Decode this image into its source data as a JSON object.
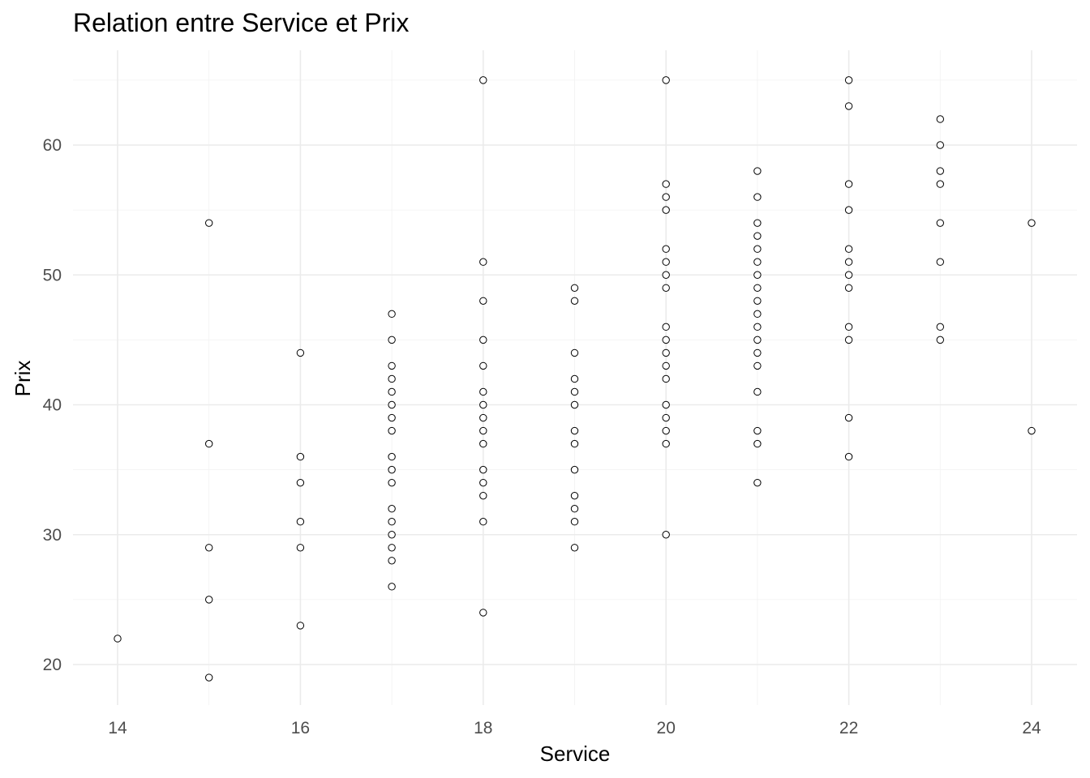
{
  "chart_data": {
    "type": "scatter",
    "title": "Relation entre Service et Prix",
    "xlabel": "Service",
    "ylabel": "Prix",
    "xlim": [
      13.5,
      24.5
    ],
    "ylim": [
      17,
      67
    ],
    "x_ticks": [
      14,
      16,
      18,
      20,
      22,
      24
    ],
    "y_ticks": [
      20,
      30,
      40,
      50,
      60
    ],
    "x_tick_labels": [
      "14",
      "16",
      "18",
      "20",
      "22",
      "24"
    ],
    "y_tick_labels": [
      "20",
      "30",
      "40",
      "50",
      "60"
    ],
    "grid": true,
    "points": [
      [
        14,
        22
      ],
      [
        15,
        54
      ],
      [
        15,
        37
      ],
      [
        15,
        29
      ],
      [
        15,
        25
      ],
      [
        15,
        19
      ],
      [
        16,
        44
      ],
      [
        16,
        36
      ],
      [
        16,
        34
      ],
      [
        16,
        31
      ],
      [
        16,
        29
      ],
      [
        16,
        23
      ],
      [
        17,
        47
      ],
      [
        17,
        45
      ],
      [
        17,
        43
      ],
      [
        17,
        42
      ],
      [
        17,
        41
      ],
      [
        17,
        40
      ],
      [
        17,
        39
      ],
      [
        17,
        38
      ],
      [
        17,
        36
      ],
      [
        17,
        35
      ],
      [
        17,
        34
      ],
      [
        17,
        32
      ],
      [
        17,
        31
      ],
      [
        17,
        30
      ],
      [
        17,
        29
      ],
      [
        17,
        28
      ],
      [
        17,
        26
      ],
      [
        18,
        65
      ],
      [
        18,
        51
      ],
      [
        18,
        48
      ],
      [
        18,
        45
      ],
      [
        18,
        43
      ],
      [
        18,
        41
      ],
      [
        18,
        40
      ],
      [
        18,
        39
      ],
      [
        18,
        38
      ],
      [
        18,
        37
      ],
      [
        18,
        35
      ],
      [
        18,
        34
      ],
      [
        18,
        33
      ],
      [
        18,
        31
      ],
      [
        18,
        24
      ],
      [
        19,
        49
      ],
      [
        19,
        48
      ],
      [
        19,
        44
      ],
      [
        19,
        42
      ],
      [
        19,
        41
      ],
      [
        19,
        40
      ],
      [
        19,
        38
      ],
      [
        19,
        37
      ],
      [
        19,
        35
      ],
      [
        19,
        33
      ],
      [
        19,
        32
      ],
      [
        19,
        31
      ],
      [
        19,
        29
      ],
      [
        20,
        65
      ],
      [
        20,
        57
      ],
      [
        20,
        56
      ],
      [
        20,
        55
      ],
      [
        20,
        52
      ],
      [
        20,
        51
      ],
      [
        20,
        50
      ],
      [
        20,
        49
      ],
      [
        20,
        46
      ],
      [
        20,
        45
      ],
      [
        20,
        44
      ],
      [
        20,
        43
      ],
      [
        20,
        42
      ],
      [
        20,
        40
      ],
      [
        20,
        39
      ],
      [
        20,
        38
      ],
      [
        20,
        37
      ],
      [
        20,
        30
      ],
      [
        21,
        58
      ],
      [
        21,
        56
      ],
      [
        21,
        54
      ],
      [
        21,
        53
      ],
      [
        21,
        52
      ],
      [
        21,
        51
      ],
      [
        21,
        50
      ],
      [
        21,
        49
      ],
      [
        21,
        48
      ],
      [
        21,
        47
      ],
      [
        21,
        46
      ],
      [
        21,
        45
      ],
      [
        21,
        44
      ],
      [
        21,
        43
      ],
      [
        21,
        41
      ],
      [
        21,
        38
      ],
      [
        21,
        37
      ],
      [
        21,
        34
      ],
      [
        22,
        65
      ],
      [
        22,
        63
      ],
      [
        22,
        57
      ],
      [
        22,
        55
      ],
      [
        22,
        52
      ],
      [
        22,
        51
      ],
      [
        22,
        50
      ],
      [
        22,
        49
      ],
      [
        22,
        46
      ],
      [
        22,
        45
      ],
      [
        22,
        39
      ],
      [
        22,
        36
      ],
      [
        23,
        62
      ],
      [
        23,
        60
      ],
      [
        23,
        58
      ],
      [
        23,
        57
      ],
      [
        23,
        54
      ],
      [
        23,
        51
      ],
      [
        23,
        46
      ],
      [
        23,
        45
      ],
      [
        24,
        54
      ],
      [
        24,
        38
      ]
    ]
  }
}
